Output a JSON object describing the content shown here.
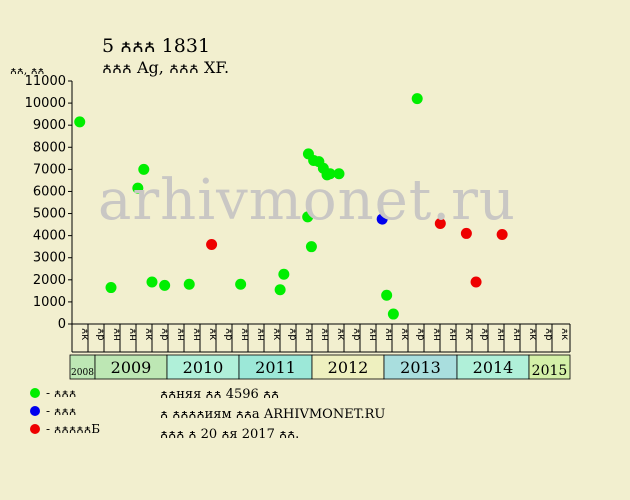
{
  "header": {
    "title": "5 ꙉꙉꙉ 1831",
    "subtitle": "ꙉꙉꙉ Ag, ꙉꙉꙉ XF."
  },
  "watermark": "arhivmonet.ru",
  "legend": [
    {
      "label": "- ꙉꙉꙉ",
      "color": "#00ee00"
    },
    {
      "label": "- ꙉꙉꙉ",
      "color": "#0000ee"
    },
    {
      "label": "- ꙉꙉꙉꙉꙉБ",
      "color": "#ee0000"
    }
  ],
  "notes": {
    "line1": "ꙉꙉняя ꙉꙉ 4596 ꙉꙉ",
    "line2": "ꙉ ꙉꙉꙉꙉиям ꙉꙉа ARHIVMONET.RU",
    "line3": "ꙉꙉꙉ ꙉ 20 ꙉя 2017 ꙉꙉ."
  },
  "chart_data": {
    "type": "scatter",
    "title": "5 ꙉꙉꙉ 1831",
    "subtitle": "ꙉꙉꙉ Ag, ꙉꙉꙉ XF.",
    "ylabel": "ꙉꙉ, ꙉꙉ",
    "ylim": [
      0,
      11000
    ],
    "yticks": [
      0,
      1000,
      2000,
      3000,
      4000,
      5000,
      6000,
      7000,
      8000,
      9000,
      10000,
      11000
    ],
    "grid": false,
    "legend_placement": "bottom-left",
    "month_labels": [
      "ꙉк",
      "ꙉр",
      "ꙉн",
      "ꙉн",
      "ꙉк",
      "ꙉр",
      "ꙉн",
      "ꙉн",
      "ꙉк",
      "ꙉр",
      "ꙉн",
      "ꙉн",
      "ꙉк",
      "ꙉр",
      "ꙉн",
      "ꙉн",
      "ꙉк",
      "ꙉр",
      "ꙉн",
      "ꙉн",
      "ꙉк",
      "ꙉр",
      "ꙉн",
      "ꙉн",
      "ꙉк",
      "ꙉр",
      "ꙉн",
      "ꙉн",
      "ꙉк",
      "ꙉр",
      "ꙉк"
    ],
    "years": [
      {
        "label": "2008",
        "start": 0,
        "end": 1,
        "color": "#bde7b4",
        "small": true
      },
      {
        "label": "2009",
        "start": 1,
        "end": 5,
        "color": "#bde7b4"
      },
      {
        "label": "2010",
        "start": 5,
        "end": 9,
        "color": "#b0f0d9"
      },
      {
        "label": "2011",
        "start": 9,
        "end": 13,
        "color": "#9ce8d8"
      },
      {
        "label": "2012",
        "start": 13,
        "end": 17,
        "color": "#eef0bf"
      },
      {
        "label": "2013",
        "start": 17,
        "end": 21,
        "color": "#a9dede"
      },
      {
        "label": "2014",
        "start": 21,
        "end": 25,
        "color": "#b0f0d9"
      },
      {
        "label": "2015",
        "start": 25,
        "end": 27,
        "color": "#d4f0a8",
        "small": true
      }
    ],
    "series": [
      {
        "color": "#00ee00",
        "points": [
          {
            "x": 0.25,
            "y": 9150
          },
          {
            "x": 2.35,
            "y": 1650
          },
          {
            "x": 4.15,
            "y": 6150
          },
          {
            "x": 4.55,
            "y": 7000
          },
          {
            "x": 5.1,
            "y": 1900
          },
          {
            "x": 5.95,
            "y": 1750
          },
          {
            "x": 7.6,
            "y": 1800
          },
          {
            "x": 11.05,
            "y": 1800
          },
          {
            "x": 13.7,
            "y": 1550
          },
          {
            "x": 13.95,
            "y": 2250
          },
          {
            "x": 15.6,
            "y": 7700
          },
          {
            "x": 15.95,
            "y": 7400
          },
          {
            "x": 16.3,
            "y": 7350
          },
          {
            "x": 16.6,
            "y": 7050
          },
          {
            "x": 16.85,
            "y": 6750
          },
          {
            "x": 17.05,
            "y": 6800
          },
          {
            "x": 17.65,
            "y": 6800
          },
          {
            "x": 15.55,
            "y": 4850
          },
          {
            "x": 15.8,
            "y": 3500
          },
          {
            "x": 20.85,
            "y": 1300
          },
          {
            "x": 21.3,
            "y": 450
          },
          {
            "x": 22.9,
            "y": 10200
          }
        ]
      },
      {
        "color": "#0000ee",
        "points": [
          {
            "x": 20.55,
            "y": 4750
          }
        ]
      },
      {
        "color": "#ee0000",
        "points": [
          {
            "x": 9.1,
            "y": 3600
          },
          {
            "x": 24.45,
            "y": 4550
          },
          {
            "x": 26.2,
            "y": 4100
          },
          {
            "x": 26.85,
            "y": 1900
          },
          {
            "x": 28.6,
            "y": 4050
          }
        ]
      }
    ]
  }
}
